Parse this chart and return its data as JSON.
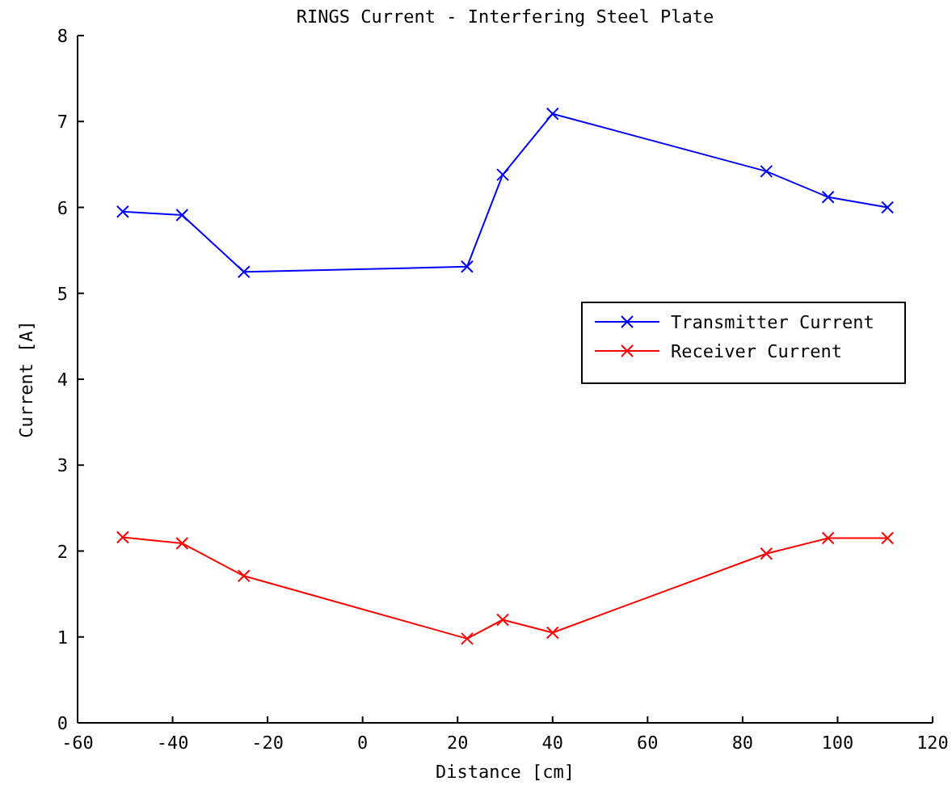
{
  "chart_data": {
    "type": "line",
    "title": "RINGS Current - Interfering Steel Plate",
    "xlabel": "Distance [cm]",
    "ylabel": "Current [A]",
    "x": [
      -50.5,
      -38,
      -25,
      22,
      29.5,
      40,
      85,
      98,
      110.5
    ],
    "series": [
      {
        "name": "Transmitter Current",
        "color": "#0000ff",
        "values": [
          5.95,
          5.91,
          5.25,
          5.31,
          6.38,
          7.09,
          6.42,
          6.12,
          6.0
        ]
      },
      {
        "name": "Receiver Current",
        "color": "#ff0000",
        "values": [
          2.16,
          2.09,
          1.71,
          0.98,
          1.2,
          1.05,
          1.97,
          2.15,
          2.15
        ]
      }
    ],
    "xlim": [
      -60,
      120
    ],
    "xticks": [
      -60,
      -40,
      -20,
      0,
      20,
      40,
      60,
      80,
      100,
      120
    ],
    "ylim": [
      0,
      8
    ],
    "yticks": [
      0,
      1,
      2,
      3,
      4,
      5,
      6,
      7,
      8
    ],
    "grid": false,
    "legend": "right",
    "marker": "cross",
    "line_style": "solid"
  }
}
